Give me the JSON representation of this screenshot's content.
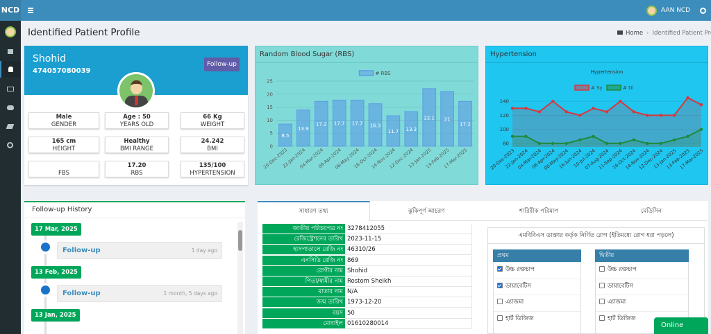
{
  "navbar": {
    "brand": "NCD",
    "user": "AAN NCD"
  },
  "header": {
    "title": "Identified Patient Profile",
    "breadcrumb": [
      "Home",
      "Identified Patient Profile"
    ]
  },
  "profile": {
    "name": "Shohid",
    "id": "474057080039",
    "button": "Follow-up",
    "stats": [
      {
        "value": "Male",
        "label": "GENDER"
      },
      {
        "value": "Age : 50",
        "label": "YEARS OLD"
      },
      {
        "value": "66 Kg",
        "label": "WEIGHT"
      },
      {
        "value": "165 cm",
        "label": "HEIGHT"
      },
      {
        "value": "Healthy",
        "label": "BMI RANGE"
      },
      {
        "value": "24.242",
        "label": "BMI"
      },
      {
        "label": "FBS"
      },
      {
        "value": "17.20",
        "label": "RBS"
      },
      {
        "value": "135/100",
        "label": "HYPERTENSION"
      }
    ]
  },
  "chart_data": [
    {
      "type": "bar",
      "title": "Random Blood Sugar (RBS)",
      "categories": [
        "20-Dec-2023",
        "22-Jan-2024",
        "04-Mar-2024",
        "08-Apr-2024",
        "08-May-2024",
        "16-Oct-2024",
        "14-Nov-2024",
        "12-Dec-2024",
        "13-Jan-2025",
        "13-Feb-2025",
        "17-Mar-2025"
      ],
      "series": [
        {
          "name": "# RBS",
          "color": "#5b9be6",
          "values": [
            8.5,
            13.9,
            17.2,
            17.7,
            17.7,
            16.3,
            11.7,
            13.3,
            22.1,
            21,
            17.2
          ]
        }
      ],
      "ylim": [
        0,
        25
      ],
      "yticks": [
        0,
        5,
        10,
        15,
        20,
        25
      ],
      "grid": true,
      "legend": "top"
    },
    {
      "type": "line",
      "panel_title": "Hypertension",
      "title": "Hypertension",
      "categories": [
        "20-Dec-2023",
        "22-Jan-2024",
        "04-Mar-2024",
        "08-Apr-2024",
        "08-May-2024",
        "16-Jun-2024",
        "10-Jul-2024",
        "07-Aug-2024",
        "11-Sep-2024",
        "16-Oct-2024",
        "14-Nov-2024",
        "12-Dec-2024",
        "13-Jan-2025",
        "13-Feb-2025",
        "17-Mar-2025"
      ],
      "series": [
        {
          "name": "# Sy",
          "color": "#d9363e",
          "values": [
            130,
            130,
            125,
            140,
            125,
            120,
            130,
            125,
            140,
            125,
            120,
            120,
            120,
            145,
            135
          ]
        },
        {
          "name": "# Di",
          "color": "#1e8a3c",
          "values": [
            90,
            90,
            80,
            80,
            80,
            85,
            90,
            80,
            80,
            85,
            80,
            80,
            85,
            90,
            100
          ]
        }
      ],
      "ylim": [
        75,
        150
      ],
      "yticks": [
        80,
        100,
        120,
        140
      ],
      "grid": true,
      "legend": "top"
    }
  ],
  "follow_up": {
    "title": "Follow-up History",
    "entries": [
      {
        "date": "17 Mar, 2025",
        "item": "Follow-up",
        "time": "1 day ago"
      },
      {
        "date": "13 Feb, 2025",
        "item": "Follow-up",
        "time": "1 month, 5 days ago"
      },
      {
        "date": "13 Jan, 2025"
      }
    ]
  },
  "tabs": [
    "সাধারণ তথ্য",
    "ঝুকিপূর্ণ আচরণ",
    "শারিরীক পরিমাপ",
    "মেডিসিন"
  ],
  "info_table": {
    "rows": [
      [
        "জাতীয় পরিচয়পত্র নং",
        "3278412055"
      ],
      [
        "রেজিস্ট্রেশনের তারিখ",
        "2023-11-15"
      ],
      [
        "হাসপাতালে রেজি নং",
        "46310/26"
      ],
      [
        "এনসিডি রেজি নং",
        "869"
      ],
      [
        "রোগীর নাম",
        "Shohid"
      ],
      [
        "পিতা/স্বামীর নাম",
        "Rostom Sheikh"
      ],
      [
        "মাতার নাম",
        "N/A"
      ],
      [
        "জন্ম তারিখ",
        "1973-12-20"
      ],
      [
        "বয়স",
        "50"
      ],
      [
        "মোবাইল",
        "01610280014"
      ]
    ]
  },
  "diagnosis": {
    "title": "এমবিবিএস ডাক্তার কর্তৃক নির্ণিত রোগ (ইতিমধ্যে রোগ ধরা পড়লে)",
    "columns": [
      {
        "header": "প্রথম",
        "items": [
          {
            "label": "উচ্চ রক্তচাপ",
            "checked": true
          },
          {
            "label": "ডায়াবেটিস",
            "checked": true
          },
          {
            "label": "এ্যাজমা",
            "checked": false
          },
          {
            "label": "হার্ট ডিজিজ",
            "checked": false
          }
        ]
      },
      {
        "header": "দ্বিতীয়",
        "items": [
          {
            "label": "উচ্চ রক্তচাপ",
            "checked": false
          },
          {
            "label": "ডায়াবেটিস",
            "checked": false
          },
          {
            "label": "এ্যাজমা",
            "checked": false
          },
          {
            "label": "হার্ট ডিজিজ",
            "checked": false
          }
        ]
      }
    ]
  },
  "online": "Online"
}
